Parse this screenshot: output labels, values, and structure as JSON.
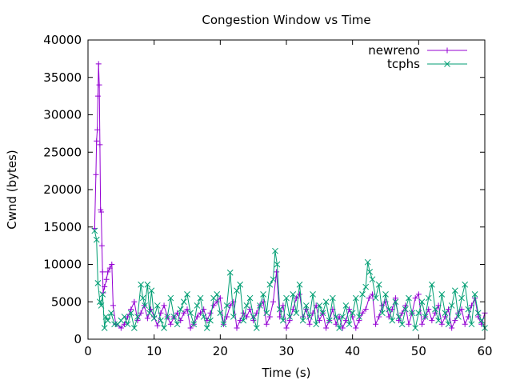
{
  "chart_data": {
    "type": "line",
    "title": "Congestion Window vs Time",
    "xlabel": "Time (s)",
    "ylabel": "Cwnd (bytes)",
    "xlim": [
      0,
      60
    ],
    "ylim": [
      0,
      40000
    ],
    "x_ticks": [
      0,
      10,
      20,
      30,
      40,
      50,
      60
    ],
    "y_ticks": [
      0,
      5000,
      10000,
      15000,
      20000,
      25000,
      30000,
      35000,
      40000
    ],
    "grid": false,
    "legend_position": "top-right",
    "series": [
      {
        "name": "newreno",
        "color": "#9400d3",
        "marker": "plus",
        "points": [
          [
            1.0,
            14800
          ],
          [
            1.2,
            22000
          ],
          [
            1.3,
            26500
          ],
          [
            1.4,
            28000
          ],
          [
            1.5,
            32500
          ],
          [
            1.6,
            36800
          ],
          [
            1.7,
            34000
          ],
          [
            1.8,
            26000
          ],
          [
            1.9,
            17300
          ],
          [
            2.0,
            17000
          ],
          [
            2.1,
            12500
          ],
          [
            2.2,
            9000
          ],
          [
            2.3,
            6200
          ],
          [
            2.5,
            7000
          ],
          [
            2.8,
            8000
          ],
          [
            3.0,
            9000
          ],
          [
            3.3,
            9500
          ],
          [
            3.6,
            10000
          ],
          [
            3.8,
            4500
          ],
          [
            4.2,
            2000
          ],
          [
            5.0,
            1500
          ],
          [
            5.5,
            2000
          ],
          [
            6.0,
            3000
          ],
          [
            6.5,
            4000
          ],
          [
            7.0,
            5000
          ],
          [
            7.5,
            2500
          ],
          [
            8.0,
            3500
          ],
          [
            8.5,
            4500
          ],
          [
            9.0,
            2800
          ],
          [
            9.5,
            4000
          ],
          [
            10.0,
            3000
          ],
          [
            10.5,
            1800
          ],
          [
            11.0,
            3500
          ],
          [
            11.5,
            4500
          ],
          [
            12.0,
            3000
          ],
          [
            12.5,
            2000
          ],
          [
            13.0,
            3000
          ],
          [
            13.5,
            3500
          ],
          [
            14.0,
            2500
          ],
          [
            14.5,
            3500
          ],
          [
            15.0,
            4000
          ],
          [
            15.5,
            1500
          ],
          [
            16.0,
            2000
          ],
          [
            16.5,
            3000
          ],
          [
            17.0,
            3500
          ],
          [
            17.5,
            4000
          ],
          [
            18.0,
            2500
          ],
          [
            18.5,
            3500
          ],
          [
            19.0,
            4500
          ],
          [
            19.5,
            5000
          ],
          [
            20.0,
            5500
          ],
          [
            20.5,
            2000
          ],
          [
            21.0,
            3000
          ],
          [
            21.5,
            4500
          ],
          [
            22.0,
            5000
          ],
          [
            22.5,
            1500
          ],
          [
            23.0,
            2500
          ],
          [
            23.5,
            3500
          ],
          [
            24.0,
            3000
          ],
          [
            24.5,
            4000
          ],
          [
            25.0,
            2500
          ],
          [
            25.5,
            3500
          ],
          [
            26.0,
            4500
          ],
          [
            26.5,
            5000
          ],
          [
            27.0,
            2000
          ],
          [
            27.5,
            3000
          ],
          [
            28.0,
            5000
          ],
          [
            28.5,
            9000
          ],
          [
            29.0,
            3000
          ],
          [
            29.5,
            4500
          ],
          [
            30.0,
            1500
          ],
          [
            30.5,
            2500
          ],
          [
            31.0,
            4000
          ],
          [
            31.5,
            5500
          ],
          [
            32.0,
            6000
          ],
          [
            32.5,
            3000
          ],
          [
            33.0,
            4000
          ],
          [
            33.5,
            2000
          ],
          [
            34.0,
            3500
          ],
          [
            34.5,
            4500
          ],
          [
            35.0,
            2500
          ],
          [
            35.5,
            3500
          ],
          [
            36.0,
            1500
          ],
          [
            36.5,
            2500
          ],
          [
            37.0,
            4000
          ],
          [
            37.5,
            2000
          ],
          [
            38.0,
            3000
          ],
          [
            38.5,
            1500
          ],
          [
            39.0,
            2500
          ],
          [
            39.5,
            4000
          ],
          [
            40.0,
            3000
          ],
          [
            40.5,
            1500
          ],
          [
            41.0,
            2500
          ],
          [
            41.5,
            3500
          ],
          [
            42.0,
            4000
          ],
          [
            42.5,
            5500
          ],
          [
            43.0,
            6000
          ],
          [
            43.5,
            2000
          ],
          [
            44.0,
            3000
          ],
          [
            44.5,
            4500
          ],
          [
            45.0,
            5000
          ],
          [
            45.5,
            3000
          ],
          [
            46.0,
            4000
          ],
          [
            46.5,
            5500
          ],
          [
            47.0,
            2500
          ],
          [
            47.5,
            3500
          ],
          [
            48.0,
            4500
          ],
          [
            48.5,
            2000
          ],
          [
            49.0,
            3500
          ],
          [
            49.5,
            5500
          ],
          [
            50.0,
            6000
          ],
          [
            50.5,
            2000
          ],
          [
            51.0,
            3000
          ],
          [
            51.5,
            4000
          ],
          [
            52.0,
            2500
          ],
          [
            52.5,
            3500
          ],
          [
            53.0,
            4500
          ],
          [
            53.5,
            2000
          ],
          [
            54.0,
            3000
          ],
          [
            54.5,
            4000
          ],
          [
            55.0,
            1500
          ],
          [
            55.5,
            2500
          ],
          [
            56.0,
            3500
          ],
          [
            56.5,
            4000
          ],
          [
            57.0,
            2000
          ],
          [
            57.5,
            3000
          ],
          [
            58.0,
            4500
          ],
          [
            58.5,
            5500
          ],
          [
            59.0,
            3000
          ],
          [
            59.5,
            2000
          ],
          [
            60.0,
            3500
          ]
        ]
      },
      {
        "name": "tcphs",
        "color": "#009e73",
        "marker": "cross",
        "points": [
          [
            1.0,
            14500
          ],
          [
            1.3,
            13300
          ],
          [
            1.5,
            7500
          ],
          [
            1.8,
            5000
          ],
          [
            2.0,
            4500
          ],
          [
            2.2,
            6000
          ],
          [
            2.5,
            1500
          ],
          [
            2.7,
            3000
          ],
          [
            3.0,
            2500
          ],
          [
            3.5,
            3500
          ],
          [
            4.0,
            2000
          ],
          [
            4.5,
            2000
          ],
          [
            5.0,
            2500
          ],
          [
            5.5,
            3000
          ],
          [
            6.0,
            2000
          ],
          [
            6.5,
            3500
          ],
          [
            7.0,
            1500
          ],
          [
            7.5,
            3000
          ],
          [
            8.0,
            7300
          ],
          [
            8.3,
            5500
          ],
          [
            8.6,
            4500
          ],
          [
            9.0,
            7300
          ],
          [
            9.3,
            3500
          ],
          [
            9.6,
            6500
          ],
          [
            10.0,
            2800
          ],
          [
            10.5,
            4500
          ],
          [
            11.0,
            2500
          ],
          [
            11.5,
            1500
          ],
          [
            12.0,
            3000
          ],
          [
            12.5,
            5500
          ],
          [
            13.0,
            3000
          ],
          [
            13.5,
            2000
          ],
          [
            14.0,
            4000
          ],
          [
            14.5,
            5000
          ],
          [
            15.0,
            6000
          ],
          [
            15.5,
            3500
          ],
          [
            16.0,
            2000
          ],
          [
            16.5,
            4500
          ],
          [
            17.0,
            5500
          ],
          [
            17.5,
            3000
          ],
          [
            18.0,
            1500
          ],
          [
            18.5,
            2500
          ],
          [
            19.0,
            5500
          ],
          [
            19.5,
            6000
          ],
          [
            20.0,
            3500
          ],
          [
            20.5,
            2000
          ],
          [
            21.0,
            4500
          ],
          [
            21.5,
            8900
          ],
          [
            22.0,
            3000
          ],
          [
            22.5,
            6500
          ],
          [
            23.0,
            7300
          ],
          [
            23.5,
            2500
          ],
          [
            24.0,
            4500
          ],
          [
            24.5,
            5500
          ],
          [
            25.0,
            3000
          ],
          [
            25.5,
            1500
          ],
          [
            26.0,
            4500
          ],
          [
            26.5,
            6000
          ],
          [
            27.0,
            3500
          ],
          [
            27.5,
            7300
          ],
          [
            28.0,
            8000
          ],
          [
            28.3,
            11800
          ],
          [
            28.6,
            10000
          ],
          [
            29.0,
            4000
          ],
          [
            29.5,
            2500
          ],
          [
            30.0,
            5500
          ],
          [
            30.5,
            3000
          ],
          [
            31.0,
            6000
          ],
          [
            31.5,
            3500
          ],
          [
            32.0,
            7300
          ],
          [
            32.5,
            2500
          ],
          [
            33.0,
            4500
          ],
          [
            33.5,
            3000
          ],
          [
            34.0,
            6000
          ],
          [
            34.5,
            2000
          ],
          [
            35.0,
            4500
          ],
          [
            35.5,
            3500
          ],
          [
            36.0,
            5000
          ],
          [
            36.5,
            2500
          ],
          [
            37.0,
            5500
          ],
          [
            37.5,
            3000
          ],
          [
            38.0,
            1500
          ],
          [
            38.5,
            3000
          ],
          [
            39.0,
            4500
          ],
          [
            39.5,
            2000
          ],
          [
            40.0,
            3500
          ],
          [
            40.5,
            5500
          ],
          [
            41.0,
            3000
          ],
          [
            41.5,
            6000
          ],
          [
            42.0,
            7000
          ],
          [
            42.3,
            10300
          ],
          [
            42.6,
            9000
          ],
          [
            43.0,
            8000
          ],
          [
            43.5,
            5500
          ],
          [
            44.0,
            7300
          ],
          [
            44.5,
            3500
          ],
          [
            45.0,
            6000
          ],
          [
            45.5,
            4000
          ],
          [
            46.0,
            2500
          ],
          [
            46.5,
            5000
          ],
          [
            47.0,
            3000
          ],
          [
            47.5,
            2000
          ],
          [
            48.0,
            4000
          ],
          [
            48.5,
            5500
          ],
          [
            49.0,
            3500
          ],
          [
            49.5,
            1500
          ],
          [
            50.0,
            3500
          ],
          [
            50.5,
            5000
          ],
          [
            51.0,
            3000
          ],
          [
            51.5,
            5500
          ],
          [
            52.0,
            7300
          ],
          [
            52.5,
            4000
          ],
          [
            53.0,
            2500
          ],
          [
            53.5,
            6000
          ],
          [
            54.0,
            3500
          ],
          [
            54.5,
            2000
          ],
          [
            55.0,
            4500
          ],
          [
            55.5,
            6500
          ],
          [
            56.0,
            3000
          ],
          [
            56.5,
            5500
          ],
          [
            57.0,
            7300
          ],
          [
            57.5,
            4000
          ],
          [
            58.0,
            2000
          ],
          [
            58.5,
            6000
          ],
          [
            59.0,
            3500
          ],
          [
            59.5,
            2500
          ],
          [
            60.0,
            1500
          ]
        ]
      }
    ]
  }
}
